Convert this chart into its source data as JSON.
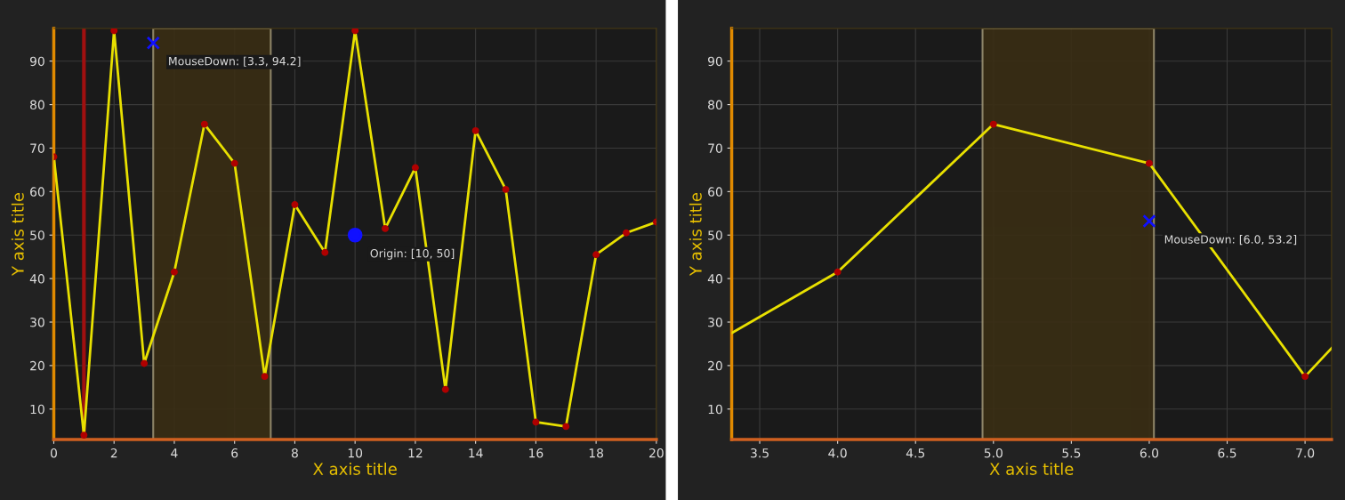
{
  "chart_data": [
    {
      "type": "line",
      "xlabel": "X axis title",
      "ylabel": "Y axis title",
      "x": [
        0,
        1,
        2,
        3,
        4,
        5,
        6,
        7,
        8,
        9,
        10,
        11,
        12,
        13,
        14,
        15,
        16,
        17,
        18,
        19,
        20
      ],
      "series": [
        {
          "color": "#e8e000",
          "values": [
            68,
            4,
            97,
            20.5,
            41.5,
            75.5,
            66.5,
            17.5,
            57,
            46,
            97,
            51.5,
            65.5,
            14.5,
            74,
            60.5,
            7,
            6,
            45.5,
            50.5,
            53
          ]
        }
      ],
      "colors": [
        "#b00000",
        "#b00000",
        "#b00000",
        "#b00000",
        "#b00000",
        "#b00000",
        "#b00000",
        "#b00000",
        "#b00000",
        "#b00000",
        "#b00000",
        "#b00000",
        "#b00000",
        "#b00000",
        "#b00000",
        "#b00000",
        "#b00000",
        "#b00000",
        "#b00000",
        "#b00000",
        "#b00000"
      ],
      "marker": "circle",
      "line_style": "solid",
      "grid": true,
      "xlim": [
        0,
        20
      ],
      "xticks": [
        0,
        2,
        4,
        6,
        8,
        10,
        12,
        14,
        16,
        18,
        20
      ],
      "ylim": [
        3,
        97.5
      ],
      "yticks": [
        10,
        20,
        30,
        40,
        50,
        60,
        70,
        80,
        90
      ],
      "ref_lines": [
        {
          "axis": "x",
          "value": 1,
          "color": "#a01010"
        }
      ],
      "bands": [
        {
          "axis": "x",
          "from": 3.3,
          "to": 7.2,
          "color": "#3a2e14"
        }
      ],
      "annotations": [
        {
          "text": "MouseDown: [3.3, 94.2]",
          "x": 3.3,
          "y": 94.2
        },
        {
          "text": "Origin: [10, 50]",
          "x": 10,
          "y": 50
        }
      ]
    },
    {
      "type": "line",
      "xlabel": "X axis title",
      "ylabel": "Y axis title",
      "x": [
        3.32,
        4,
        5,
        6,
        7,
        7.17
      ],
      "series": [
        {
          "color": "#e8e000",
          "values": [
            27.5,
            41.5,
            75.5,
            66.5,
            17.5,
            24
          ]
        }
      ],
      "colors": [
        null,
        "#b00000",
        "#b00000",
        "#b00000",
        "#b00000",
        null
      ],
      "marker": "circle",
      "line_style": "solid",
      "grid": true,
      "xlim": [
        3.32,
        7.17
      ],
      "xticks": [
        3.5,
        {
          "value": 4,
          "label": "4.0"
        },
        4.5,
        {
          "value": 5,
          "label": "5.0"
        },
        5.5,
        {
          "value": 6,
          "label": "6.0"
        },
        6.5,
        {
          "value": 7,
          "label": "7.0"
        }
      ],
      "ylim": [
        3,
        97.5
      ],
      "yticks": [
        10,
        20,
        30,
        40,
        50,
        60,
        70,
        80,
        90
      ],
      "bands": [
        {
          "axis": "x",
          "from": 4.93,
          "to": 6.03,
          "color": "#3a2e14"
        }
      ],
      "annotations": [
        {
          "text": "MouseDown: [6.0, 53.2]",
          "x": 6.0,
          "y": 53.2
        }
      ]
    }
  ]
}
